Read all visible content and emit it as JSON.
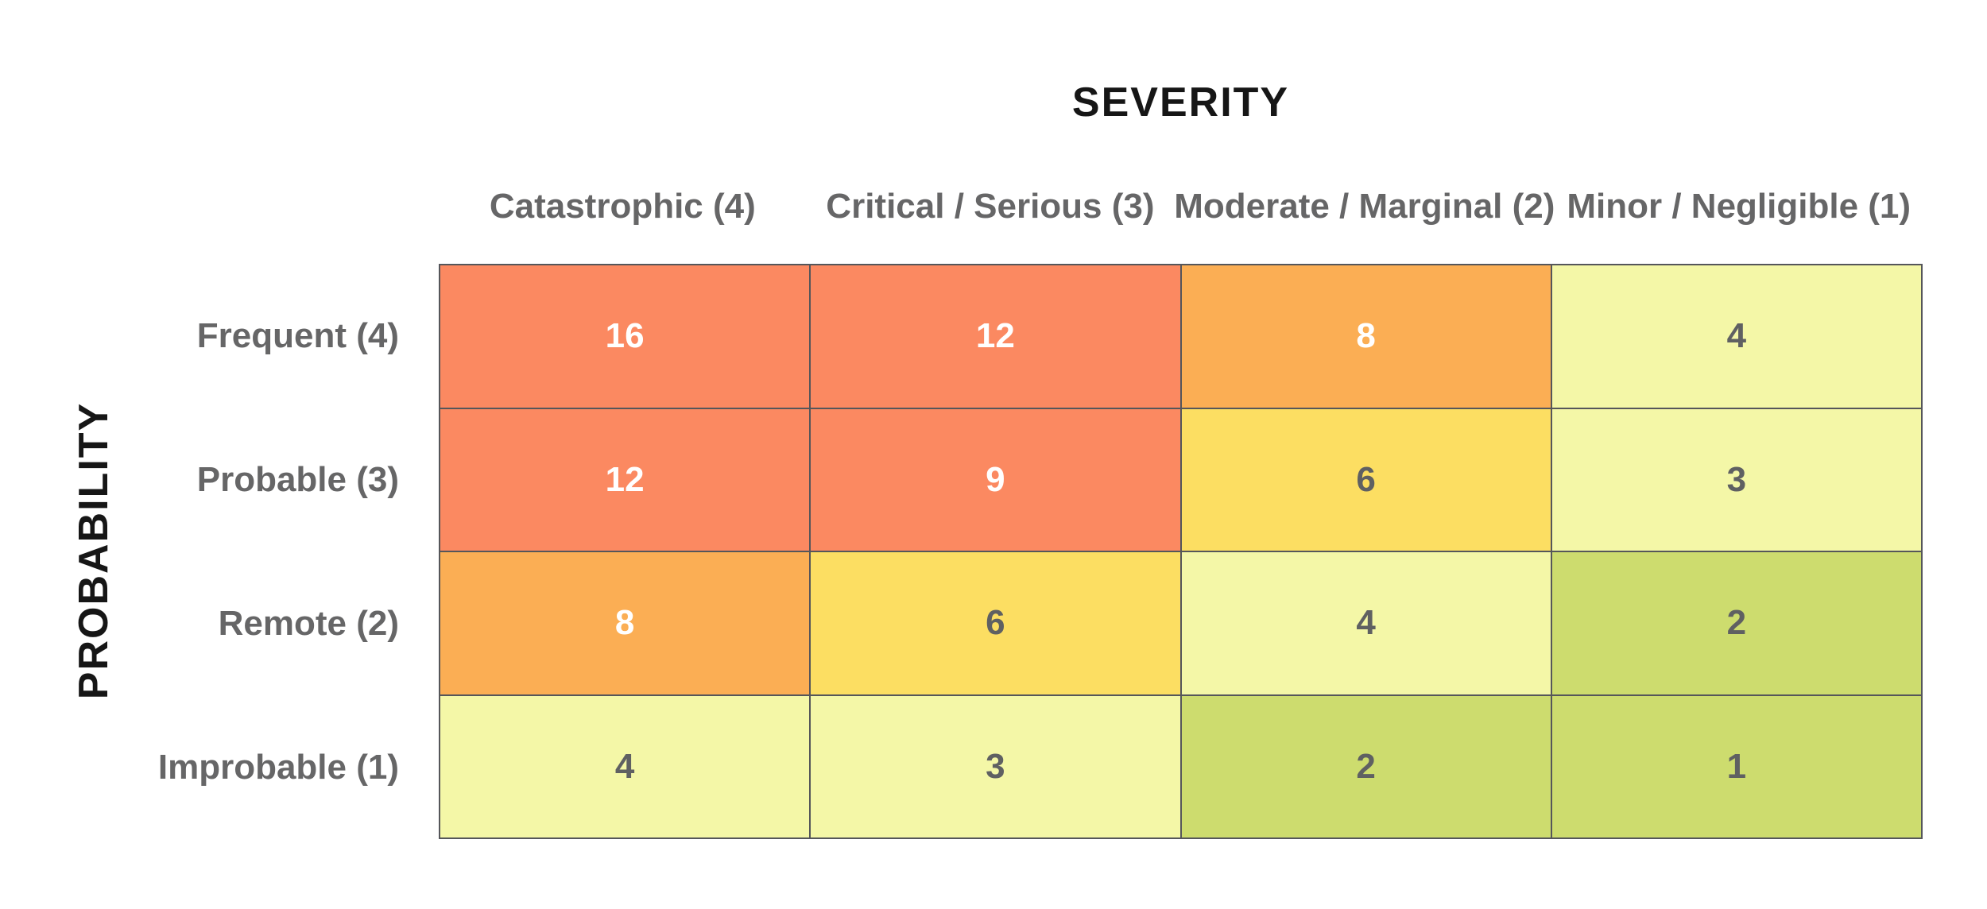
{
  "title": "SEVERITY",
  "y_axis_title": "PROBABILITY",
  "colors": {
    "grid_line": "#55565A",
    "label_text": "#666667",
    "axis_title_text": "#161616",
    "levels": {
      "high": {
        "bg": "#FB8961",
        "text": "#FFFFFF"
      },
      "elevated": {
        "bg": "#FBAE54",
        "text": "#FFFFFF"
      },
      "moderate": {
        "bg": "#FCDE62",
        "text": "#5F6062"
      },
      "low": {
        "bg": "#F4F7A7",
        "text": "#5F6062"
      },
      "minimal": {
        "bg": "#CDDC6E",
        "text": "#5F6062"
      }
    }
  },
  "chart_data": {
    "type": "heatmap",
    "title": "SEVERITY",
    "xlabel": "SEVERITY",
    "ylabel": "PROBABILITY",
    "columns": [
      "Catastrophic (4)",
      "Critical / Serious (3)",
      "Moderate / Marginal (2)",
      "Minor / Negligible (1)"
    ],
    "rows": [
      "Frequent (4)",
      "Probable (3)",
      "Remote (2)",
      "Improbable (1)"
    ],
    "values": [
      [
        16,
        12,
        8,
        4
      ],
      [
        12,
        9,
        6,
        3
      ],
      [
        8,
        6,
        4,
        2
      ],
      [
        4,
        3,
        2,
        1
      ]
    ],
    "levels": [
      [
        "high",
        "high",
        "elevated",
        "low"
      ],
      [
        "high",
        "high",
        "moderate",
        "low"
      ],
      [
        "elevated",
        "moderate",
        "low",
        "minimal"
      ],
      [
        "low",
        "low",
        "minimal",
        "minimal"
      ]
    ],
    "legend_position": "none",
    "grid": true
  }
}
